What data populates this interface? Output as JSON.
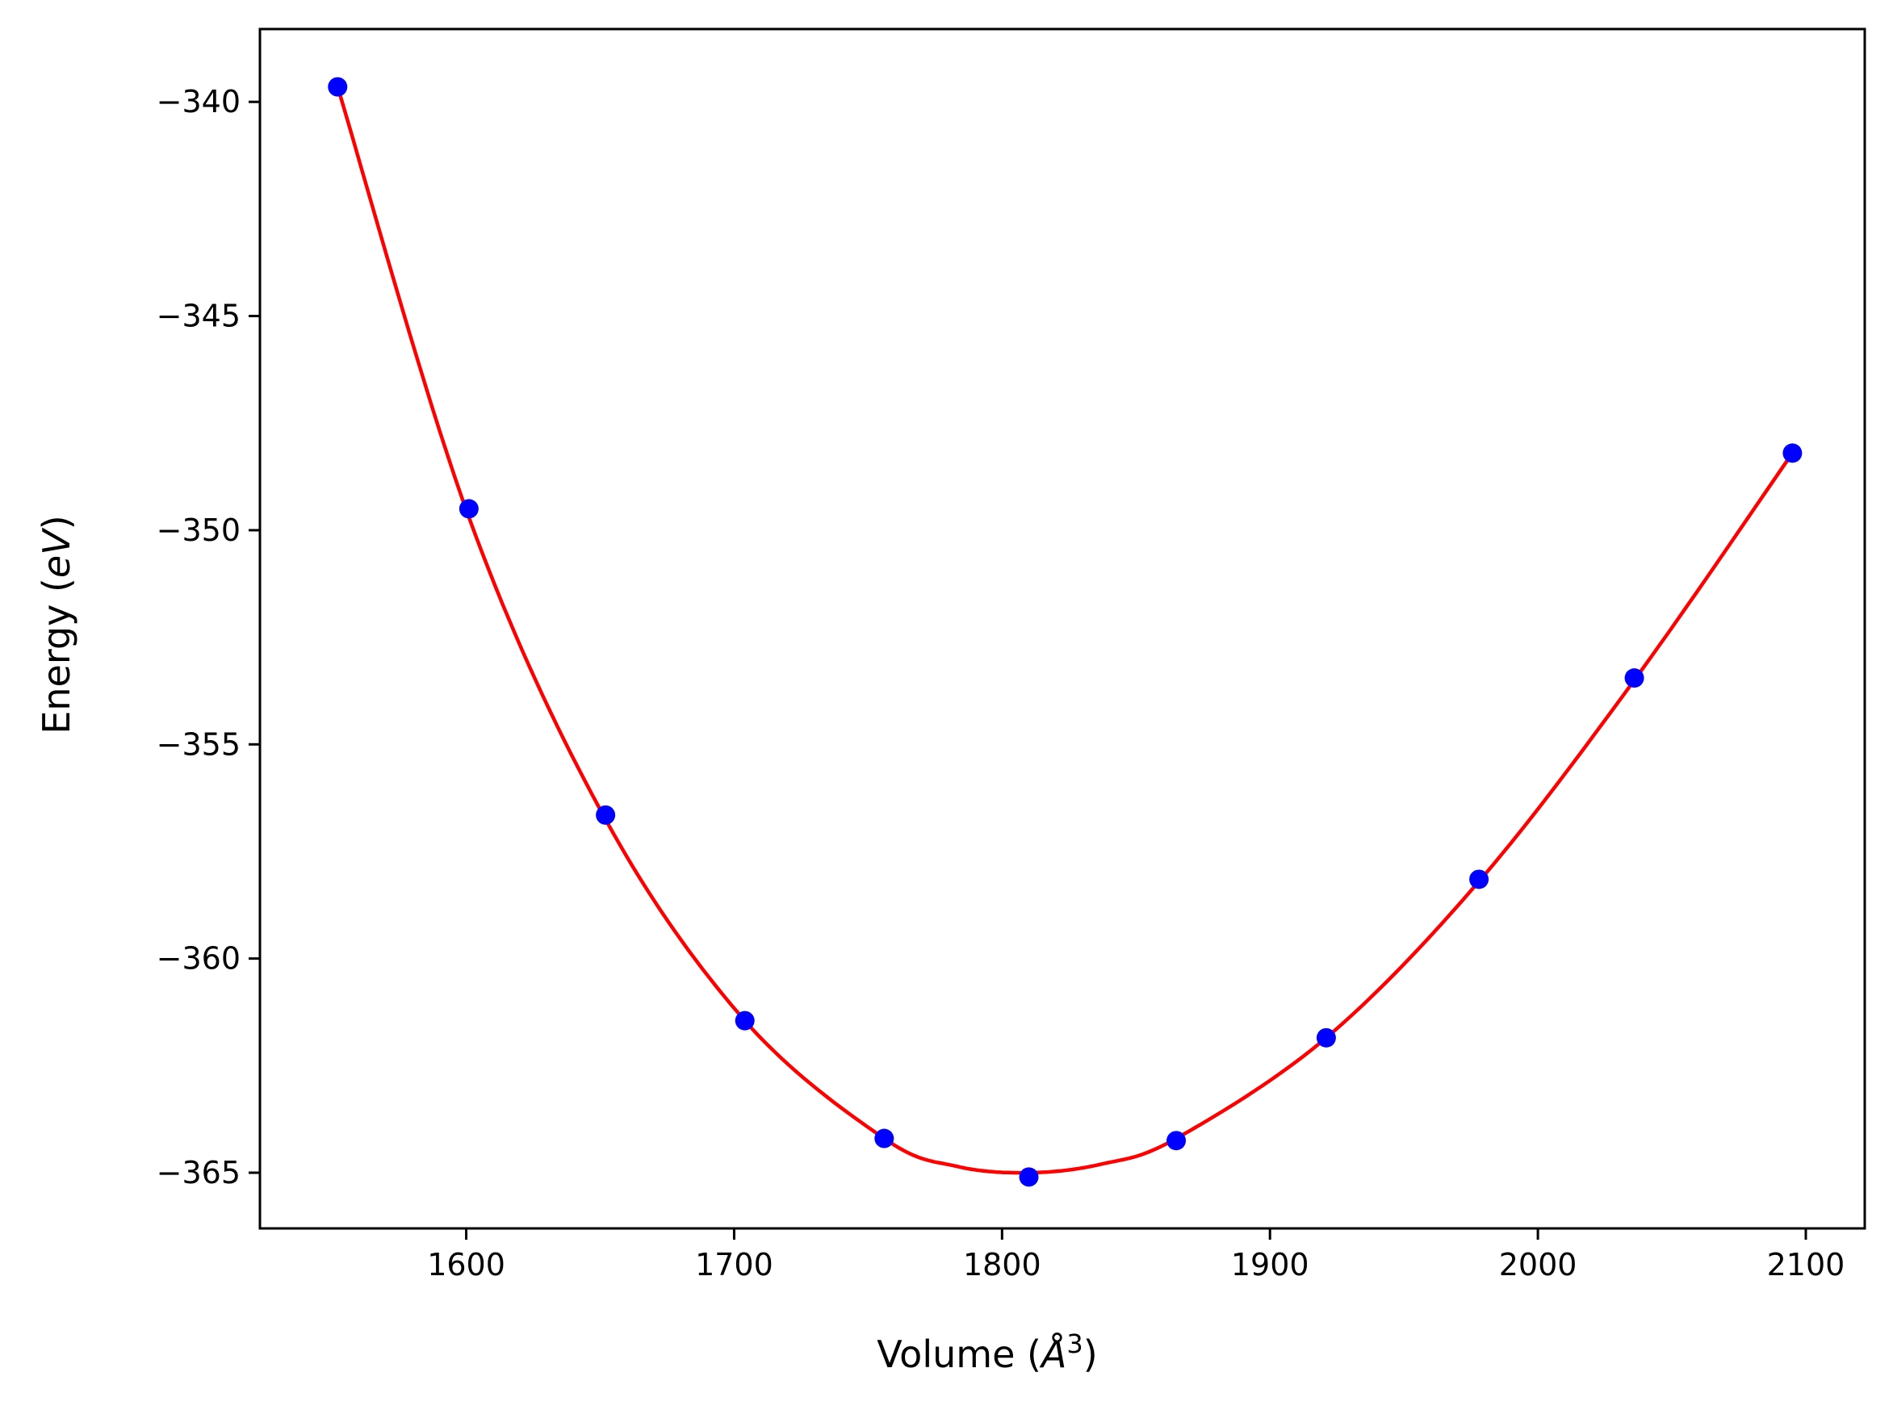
{
  "chart_data": {
    "type": "scatter",
    "title": "",
    "xlabel": {
      "prefix": "Volume (",
      "symbol": "Å",
      "exponent": "3",
      "suffix": ")"
    },
    "ylabel": {
      "prefix": "Energy (",
      "symbol": "eV",
      "suffix": ")"
    },
    "xlim": [
      1523,
      2122
    ],
    "ylim": [
      -366.3,
      -338.3
    ],
    "xticks": [
      1600,
      1700,
      1800,
      1900,
      2000,
      2100
    ],
    "xtick_labels": [
      "1600",
      "1700",
      "1800",
      "1900",
      "2000",
      "2100"
    ],
    "yticks": [
      -340,
      -345,
      -350,
      -355,
      -360,
      -365
    ],
    "ytick_labels": [
      "−340",
      "−345",
      "−350",
      "−355",
      "−360",
      "−365"
    ],
    "grid": false,
    "series": [
      {
        "kind": "points",
        "color": "#0000ff",
        "x": [
          1552,
          1601,
          1652,
          1704,
          1756,
          1810,
          1865,
          1921,
          1978,
          2036,
          2095
        ],
        "y": [
          -339.65,
          -349.5,
          -356.65,
          -361.45,
          -364.2,
          -365.1,
          -364.25,
          -361.85,
          -358.15,
          -353.45,
          -348.2
        ]
      },
      {
        "kind": "fit-line",
        "color": "#ff0000",
        "x": [
          1552,
          1601,
          1652,
          1704,
          1756,
          1783,
          1810,
          1837,
          1865,
          1921,
          1978,
          2036,
          2095
        ],
        "y": [
          -339.65,
          -349.7,
          -356.75,
          -361.45,
          -364.2,
          -364.85,
          -365.0,
          -364.8,
          -364.2,
          -361.85,
          -358.2,
          -353.5,
          -348.2
        ]
      }
    ]
  }
}
